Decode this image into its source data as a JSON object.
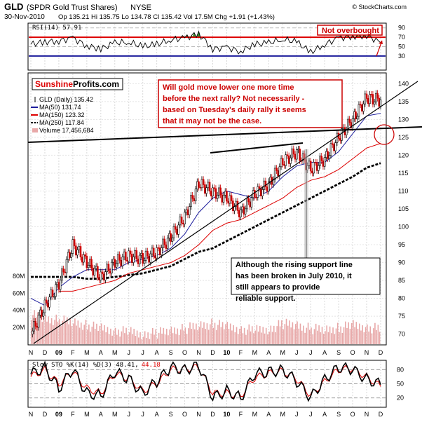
{
  "header": {
    "symbol": "GLD",
    "name": "(SPDR Gold Trust Shares)",
    "exchange": "NYSE",
    "date": "30-Nov-2010",
    "quote": "Op 135.21  Hi 135.75  Lo 134.78  Cl 135.42  Vol 17.5M  Chg +1.91 (+1.43%)",
    "watermark": "© StockCharts.com"
  },
  "colors": {
    "price_up": "#000000",
    "price_down": "#cc0000",
    "ma50": "#1c1c9c",
    "ma150": "#dd0000",
    "ma250": "#000000",
    "volume": "#e8a8a8",
    "rsi": "#000000",
    "rsi_overbought_fill": "#2e8b2e",
    "rsi_line_70": "#dd0000",
    "rsi_line_30": "#1c1c9c",
    "sto_k": "#000000",
    "sto_d": "#dd0000",
    "annotation_red": "#cc0000",
    "logo_red": "#dd0000"
  },
  "logo": {
    "part1": "Sunshine",
    "part2": "Profits.com"
  },
  "callouts": {
    "not_overbought": "Not overbought",
    "top_note": "Will gold move lower one more time before the next rally? Not necessarily - based on Tuesday's daily rally it seems that it may not be the case.",
    "support_note": "Although the rising support line has been broken in July 2010, it still appears to provide reliable support."
  },
  "rsi_panel": {
    "label": "RSI(14) 57.91",
    "ticks": [
      "90",
      "70",
      "50",
      "30"
    ]
  },
  "price_panel": {
    "legend": [
      {
        "text": "GLD (Daily) 135.42",
        "color": "#000000",
        "kind": "candle"
      },
      {
        "text": "MA(50) 131.74",
        "color": "#1c1c9c",
        "kind": "line"
      },
      {
        "text": "MA(150) 123.32",
        "color": "#dd0000",
        "kind": "line"
      },
      {
        "text": "MA(250) 117.84",
        "color": "#000000",
        "kind": "dashed"
      },
      {
        "text": "Volume 17,456,684",
        "color": "#e8a8a8",
        "kind": "bar"
      }
    ],
    "y_ticks": [
      "140",
      "135",
      "130",
      "125",
      "120",
      "115",
      "110",
      "105",
      "100",
      "95",
      "90",
      "85",
      "80",
      "75",
      "70"
    ],
    "volume_ticks": [
      "80M",
      "60M",
      "40M",
      "20M"
    ]
  },
  "x_axis": {
    "months": [
      "N",
      "D",
      "09",
      "F",
      "M",
      "A",
      "M",
      "J",
      "J",
      "A",
      "S",
      "O",
      "N",
      "D",
      "10",
      "F",
      "M",
      "A",
      "M",
      "J",
      "J",
      "A",
      "S",
      "O",
      "N",
      "D"
    ]
  },
  "sto_panel": {
    "label": "Slow STO %K(14) %D(3) 48.41,",
    "d_value": "44.18",
    "ticks": [
      "80",
      "50",
      "20"
    ]
  },
  "chart_data": {
    "type": "line",
    "title": "GLD (SPDR Gold Trust Shares) NYSE",
    "subtitle": "30-Nov-2010",
    "x": [
      "2008-11",
      "2008-12",
      "2009-01",
      "2009-02",
      "2009-03",
      "2009-04",
      "2009-05",
      "2009-06",
      "2009-07",
      "2009-08",
      "2009-09",
      "2009-10",
      "2009-11",
      "2009-12",
      "2010-01",
      "2010-02",
      "2010-03",
      "2010-04",
      "2010-05",
      "2010-06",
      "2010-07",
      "2010-08",
      "2010-09",
      "2010-10",
      "2010-11",
      "2010-12"
    ],
    "ylim": [
      67,
      143
    ],
    "series": [
      {
        "name": "GLD (Daily) 135.42",
        "values": [
          70,
          78,
          84,
          95,
          90,
          86,
          90,
          92,
          91,
          93,
          97,
          103,
          112,
          110,
          108,
          104,
          109,
          112,
          118,
          121,
          116,
          119,
          125,
          130,
          136,
          135.4
        ]
      },
      {
        "name": "MA(50) 131.74",
        "values": [
          80,
          78,
          83,
          86,
          88,
          88,
          88,
          90,
          91,
          92,
          94,
          98,
          104,
          108,
          110,
          109,
          108,
          110,
          114,
          117,
          118,
          118,
          121,
          126,
          131,
          131.7
        ]
      },
      {
        "name": "MA(150) 123.32",
        "values": [
          null,
          null,
          82,
          82,
          83,
          84,
          85,
          87,
          88,
          89,
          90,
          92,
          95,
          99,
          101,
          102,
          104,
          106,
          108,
          111,
          113,
          114,
          116,
          119,
          122,
          123.3
        ]
      },
      {
        "name": "MA(250) 117.84",
        "values": [
          86,
          86,
          86,
          86,
          85.5,
          85.5,
          86,
          86.5,
          87,
          88,
          89,
          91,
          93,
          94,
          96,
          98,
          100,
          102,
          104,
          106,
          108,
          110,
          112,
          114,
          116.5,
          117.8
        ]
      }
    ],
    "volume": {
      "name": "Volume 17,456,684",
      "unit": "M",
      "values": [
        35,
        30,
        28,
        26,
        22,
        18,
        16,
        14,
        12,
        13,
        16,
        18,
        22,
        24,
        20,
        18,
        16,
        18,
        24,
        22,
        18,
        17,
        19,
        22,
        20,
        17.5
      ]
    },
    "rsi": {
      "name": "RSI(14) 57.91",
      "values": [
        55,
        60,
        62,
        68,
        52,
        45,
        58,
        60,
        50,
        55,
        65,
        68,
        78,
        45,
        48,
        40,
        55,
        58,
        66,
        60,
        38,
        55,
        68,
        72,
        74,
        58
      ]
    },
    "stochastic": {
      "name": "Slow STO %K(14) %D(3)",
      "k": [
        70,
        85,
        40,
        80,
        30,
        25,
        75,
        60,
        30,
        55,
        85,
        80,
        90,
        20,
        35,
        20,
        70,
        75,
        80,
        55,
        20,
        60,
        85,
        80,
        60,
        48.4
      ],
      "d": [
        65,
        80,
        50,
        75,
        40,
        30,
        70,
        62,
        35,
        50,
        80,
        82,
        85,
        30,
        30,
        25,
        62,
        72,
        78,
        60,
        25,
        55,
        80,
        82,
        65,
        44.2
      ]
    }
  }
}
